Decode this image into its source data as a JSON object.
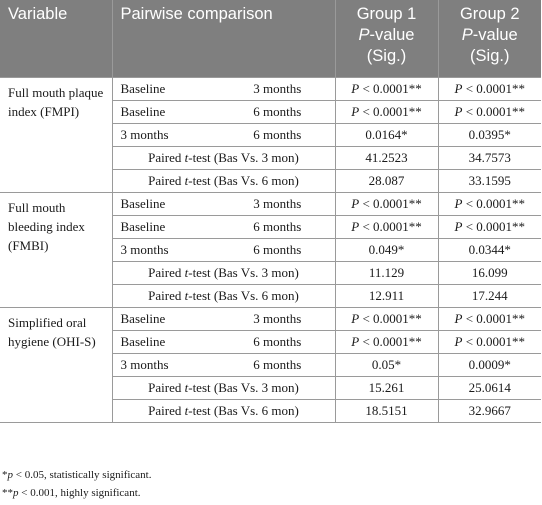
{
  "header": {
    "variable": "Variable",
    "pairwise": "Pairwise comparison",
    "group1_line1": "Group 1",
    "group1_line2": "P-value",
    "group1_line3": "(Sig.)",
    "group2_line1": "Group 2",
    "group2_line2": "P-value",
    "group2_line3": "(Sig.)"
  },
  "groups": [
    {
      "variable": "Full mouth plaque index (FMPI)",
      "rows": [
        {
          "a": "Baseline",
          "b": "3 months",
          "g1": "P < 0.0001**",
          "g2": "P < 0.0001**"
        },
        {
          "a": "Baseline",
          "b": "6 months",
          "g1": "P < 0.0001**",
          "g2": "P < 0.0001**"
        },
        {
          "a": "3 months",
          "b": "6 months",
          "g1": "0.0164*",
          "g2": "0.0395*"
        },
        {
          "t": "Paired t-test (Bas Vs. 3 mon)",
          "g1": "41.2523",
          "g2": "34.7573"
        },
        {
          "t": "Paired t-test (Bas Vs. 6 mon)",
          "g1": "28.087",
          "g2": "33.1595"
        }
      ]
    },
    {
      "variable": "Full mouth bleeding index (FMBI)",
      "rows": [
        {
          "a": "Baseline",
          "b": "3 months",
          "g1": "P < 0.0001**",
          "g2": "P < 0.0001**"
        },
        {
          "a": "Baseline",
          "b": "6 months",
          "g1": "P < 0.0001**",
          "g2": "P < 0.0001**"
        },
        {
          "a": "3 months",
          "b": "6 months",
          "g1": "0.049*",
          "g2": "0.0344*"
        },
        {
          "t": "Paired t-test (Bas Vs. 3 mon)",
          "g1": "11.129",
          "g2": "16.099"
        },
        {
          "t": "Paired t-test (Bas Vs. 6 mon)",
          "g1": "12.911",
          "g2": "17.244"
        }
      ]
    },
    {
      "variable": "Simplified oral hygiene (OHI-S)",
      "rows": [
        {
          "a": "Baseline",
          "b": "3 months",
          "g1": "P < 0.0001**",
          "g2": "P < 0.0001**"
        },
        {
          "a": "Baseline",
          "b": "6 months",
          "g1": "P < 0.0001**",
          "g2": "P < 0.0001**"
        },
        {
          "a": "3 months",
          "b": "6 months",
          "g1": "0.05*",
          "g2": "0.0009*"
        },
        {
          "t": "Paired t-test (Bas Vs. 3 mon)",
          "g1": "15.261",
          "g2": "25.0614"
        },
        {
          "t": "Paired t-test (Bas Vs. 6 mon)",
          "g1": "18.5151",
          "g2": "32.9667"
        }
      ]
    }
  ],
  "footnotes": [
    "*p < 0.05, statistically significant.",
    "**p < 0.001, highly significant."
  ]
}
